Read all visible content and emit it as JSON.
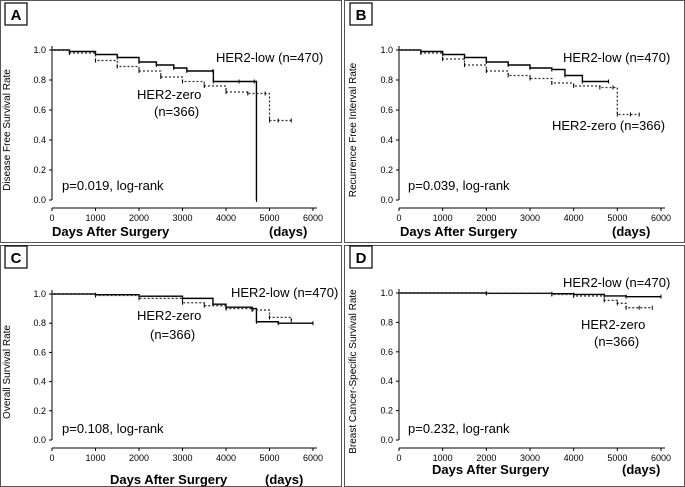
{
  "chart_data": [
    {
      "type": "line",
      "panel": "A",
      "title": "",
      "xlabel": "Days After Surgery",
      "xunit": "(days)",
      "ylabel": "Disease Free Survival Rate",
      "xlim": [
        0,
        6000
      ],
      "ylim": [
        0,
        1.0
      ],
      "xticks": [
        0,
        1000,
        2000,
        3000,
        4000,
        5000,
        6000
      ],
      "yticks": [
        0.0,
        0.2,
        0.4,
        0.6,
        0.8,
        1.0
      ],
      "tick_labels_y": [
        "0.0",
        "0.2",
        "0.4",
        "0.6",
        "0.8",
        "1.0"
      ],
      "tick_labels_x": [
        "0",
        "1000",
        "2000",
        "3000",
        "4000",
        "5000",
        "6000"
      ],
      "annotation": "p=0.019, log-rank",
      "series": [
        {
          "name": "HER2-low",
          "n": "(n=470)",
          "label_line1": "HER2-low (n=470)",
          "label_line2": "",
          "style": "solid",
          "x": [
            0,
            400,
            1000,
            1500,
            2000,
            2400,
            2800,
            3100,
            3700,
            3710,
            4300,
            4650,
            4700
          ],
          "y": [
            1.0,
            0.99,
            0.97,
            0.95,
            0.92,
            0.9,
            0.88,
            0.86,
            0.86,
            0.79,
            0.79,
            0.79,
            0.0
          ]
        },
        {
          "name": "HER2-zero",
          "n": "(n=366)",
          "label_line1": "HER2-zero",
          "label_line2": "(n=366)",
          "style": "dotted",
          "x": [
            0,
            400,
            1000,
            1500,
            2000,
            2500,
            3000,
            3500,
            4000,
            4500,
            4900,
            5000,
            5200,
            5500
          ],
          "y": [
            1.0,
            0.98,
            0.93,
            0.89,
            0.86,
            0.82,
            0.79,
            0.76,
            0.72,
            0.71,
            0.71,
            0.53,
            0.53,
            0.53
          ]
        }
      ]
    },
    {
      "type": "line",
      "panel": "B",
      "title": "",
      "xlabel": "Days After Surgery",
      "xunit": "(days)",
      "ylabel": "Recurrence Free Interval Rate",
      "xlim": [
        0,
        6000
      ],
      "ylim": [
        0,
        1.0
      ],
      "xticks": [
        0,
        1000,
        2000,
        3000,
        4000,
        5000,
        6000
      ],
      "yticks": [
        0.0,
        0.2,
        0.4,
        0.6,
        0.8,
        1.0
      ],
      "tick_labels_y": [
        "0.0",
        "0.2",
        "0.4",
        "0.6",
        "0.8",
        "1.0"
      ],
      "tick_labels_x": [
        "0",
        "1000",
        "2000",
        "3000",
        "4000",
        "5000",
        "6000"
      ],
      "annotation": "p=0.039, log-rank",
      "series": [
        {
          "name": "HER2-low",
          "n": "(n=470)",
          "label_line1": "HER2-low (n=470)",
          "label_line2": "",
          "style": "solid",
          "x": [
            0,
            500,
            1000,
            1500,
            2000,
            2500,
            3000,
            3500,
            3800,
            4200,
            4800
          ],
          "y": [
            1.0,
            0.99,
            0.97,
            0.95,
            0.92,
            0.9,
            0.88,
            0.87,
            0.83,
            0.79,
            0.79
          ]
        },
        {
          "name": "HER2-zero",
          "n": "(n=366)",
          "label_line1": "HER2-zero (n=366)",
          "label_line2": "",
          "style": "dotted",
          "x": [
            0,
            500,
            1000,
            1500,
            2000,
            2500,
            3000,
            3500,
            4000,
            4600,
            4900,
            5000,
            5300,
            5500
          ],
          "y": [
            1.0,
            0.98,
            0.94,
            0.9,
            0.86,
            0.83,
            0.81,
            0.78,
            0.76,
            0.75,
            0.75,
            0.57,
            0.57,
            0.57
          ]
        }
      ]
    },
    {
      "type": "line",
      "panel": "C",
      "title": "",
      "xlabel": "Days After Surgery",
      "xunit": "(days)",
      "ylabel": "Overall Survival Rate",
      "xlim": [
        0,
        6000
      ],
      "ylim": [
        0,
        1.0
      ],
      "xticks": [
        0,
        1000,
        2000,
        3000,
        4000,
        5000,
        6000
      ],
      "yticks": [
        0.0,
        0.2,
        0.4,
        0.6,
        0.8,
        1.0
      ],
      "tick_labels_y": [
        "0.0",
        "0.2",
        "0.4",
        "0.6",
        "0.8",
        "1.0"
      ],
      "tick_labels_x": [
        "0",
        "1000",
        "2000",
        "3000",
        "4000",
        "5000",
        "6000"
      ],
      "annotation": "p=0.108, log-rank",
      "series": [
        {
          "name": "HER2-low",
          "n": "(n=470)",
          "label_line1": "HER2-low (n=470)",
          "label_line2": "",
          "style": "solid",
          "x": [
            0,
            1000,
            2000,
            3000,
            3700,
            4000,
            4600,
            4700,
            5200,
            6000
          ],
          "y": [
            1.0,
            0.995,
            0.985,
            0.97,
            0.93,
            0.91,
            0.9,
            0.81,
            0.8,
            0.8
          ]
        },
        {
          "name": "HER2-zero",
          "n": "(n=366)",
          "label_line1": "HER2-zero",
          "label_line2": "(n=366)",
          "style": "dotted",
          "x": [
            0,
            1000,
            2000,
            3000,
            3500,
            4000,
            4600,
            5000,
            5500
          ],
          "y": [
            1.0,
            0.99,
            0.97,
            0.94,
            0.92,
            0.9,
            0.89,
            0.84,
            0.82
          ]
        }
      ]
    },
    {
      "type": "line",
      "panel": "D",
      "title": "",
      "xlabel": "Days After Surgery",
      "xunit": "(days)",
      "ylabel": "Breast Cancer-Specific Survival Rate",
      "xlim": [
        0,
        6000
      ],
      "ylim": [
        0,
        1.0
      ],
      "xticks": [
        0,
        1000,
        2000,
        3000,
        4000,
        5000,
        6000
      ],
      "yticks": [
        0.0,
        0.2,
        0.4,
        0.6,
        0.8,
        1.0
      ],
      "tick_labels_y": [
        "0.0",
        "0.2",
        "0.4",
        "0.6",
        "0.8",
        "1.0"
      ],
      "tick_labels_x": [
        "0",
        "1000",
        "2000",
        "3000",
        "4000",
        "5000",
        "6000"
      ],
      "annotation": "p=0.232, log-rank",
      "series": [
        {
          "name": "HER2-low",
          "n": "(n=470)",
          "label_line1": "HER2-low (n=470)",
          "label_line2": "",
          "style": "solid",
          "x": [
            0,
            2000,
            3500,
            4000,
            4700,
            5200,
            6000
          ],
          "y": [
            1.0,
            0.998,
            0.995,
            0.99,
            0.98,
            0.975,
            0.975
          ]
        },
        {
          "name": "HER2-zero",
          "n": "(n=366)",
          "label_line1": "HER2-zero",
          "label_line2": "(n=366)",
          "style": "dotted",
          "x": [
            0,
            2000,
            3500,
            4000,
            4700,
            5000,
            5200,
            5500,
            5800
          ],
          "y": [
            1.0,
            0.997,
            0.99,
            0.98,
            0.95,
            0.93,
            0.9,
            0.9,
            0.9
          ]
        }
      ]
    }
  ]
}
